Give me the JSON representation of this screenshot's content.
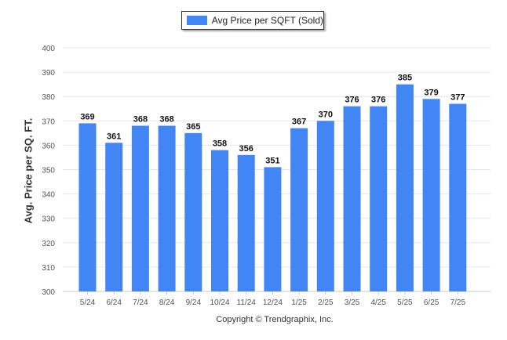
{
  "legend": {
    "label": "Avg Price per SQFT (Sold)"
  },
  "footer": {
    "copyright": "Copyright © Trendgraphix, Inc."
  },
  "colors": {
    "bar": "#4285F4",
    "grid": "#e6e6e6",
    "axis": "#c8c8c8"
  },
  "chart_data": {
    "type": "bar",
    "ylabel": "Avg. Price per SQ. FT.",
    "xlabel": "",
    "ylim": [
      300,
      400
    ],
    "yticks": [
      300,
      310,
      320,
      330,
      340,
      350,
      360,
      370,
      380,
      390,
      400
    ],
    "grid": true,
    "legend_position": "top-center",
    "categories": [
      "5/24",
      "6/24",
      "7/24",
      "8/24",
      "9/24",
      "10/24",
      "11/24",
      "12/24",
      "1/25",
      "2/25",
      "3/25",
      "4/25",
      "5/25",
      "6/25",
      "7/25"
    ],
    "series": [
      {
        "name": "Avg Price per SQFT (Sold)",
        "values": [
          369,
          361,
          368,
          368,
          365,
          358,
          356,
          351,
          367,
          370,
          376,
          376,
          385,
          379,
          377
        ]
      }
    ]
  }
}
